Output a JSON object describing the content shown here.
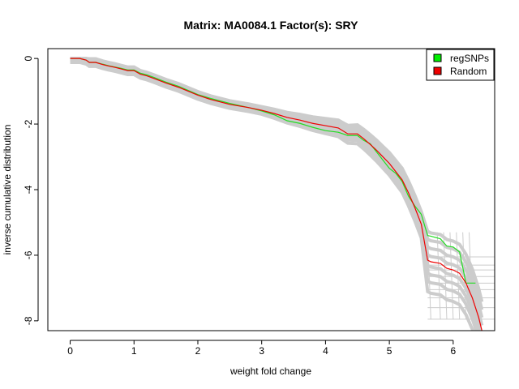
{
  "chart_data": {
    "type": "line",
    "title": "Matrix: MA0084.1 Factor(s): SRY",
    "xlabel": "weight fold change",
    "ylabel": "inverse cumulative distribution",
    "xlim": [
      -0.35,
      6.65
    ],
    "ylim": [
      -8.3,
      0.3
    ],
    "x_ticks": [
      0,
      1,
      2,
      3,
      4,
      5,
      6
    ],
    "y_ticks": [
      0,
      -2,
      -4,
      -6,
      -8
    ],
    "grid": false,
    "legend_position": "top-right",
    "legend": [
      {
        "label": "regSNPs",
        "color": "#00ee00"
      },
      {
        "label": "Random",
        "color": "#ee0000"
      }
    ],
    "background_color": "#cccccc",
    "series": [
      {
        "name": "regSNPs",
        "color": "#22dd22",
        "x": [
          0,
          0.15,
          0.25,
          0.3,
          0.4,
          0.5,
          0.6,
          0.7,
          0.8,
          0.9,
          1.0,
          1.1,
          1.2,
          1.3,
          1.5,
          1.7,
          2.0,
          2.2,
          2.5,
          2.8,
          3.0,
          3.2,
          3.4,
          3.6,
          3.8,
          4.0,
          4.2,
          4.35,
          4.5,
          4.6,
          4.7,
          4.8,
          4.9,
          5.0,
          5.1,
          5.2,
          5.3,
          5.4,
          5.5,
          5.6,
          5.65,
          5.8,
          5.9,
          6.0,
          6.1,
          6.2,
          6.35
        ],
        "y": [
          0,
          0,
          -0.05,
          -0.12,
          -0.12,
          -0.17,
          -0.22,
          -0.26,
          -0.3,
          -0.35,
          -0.35,
          -0.45,
          -0.5,
          -0.57,
          -0.72,
          -0.85,
          -1.1,
          -1.22,
          -1.37,
          -1.5,
          -1.6,
          -1.72,
          -1.9,
          -1.98,
          -2.1,
          -2.2,
          -2.25,
          -2.35,
          -2.35,
          -2.5,
          -2.6,
          -2.85,
          -3.1,
          -3.35,
          -3.5,
          -3.75,
          -4.2,
          -4.5,
          -4.75,
          -5.4,
          -5.42,
          -5.5,
          -5.72,
          -5.75,
          -5.9,
          -6.85,
          -6.85
        ]
      },
      {
        "name": "Random",
        "color": "#ee0000",
        "x": [
          0,
          0.15,
          0.25,
          0.3,
          0.4,
          0.5,
          0.6,
          0.7,
          0.8,
          0.9,
          1.0,
          1.1,
          1.2,
          1.3,
          1.5,
          1.7,
          2.0,
          2.2,
          2.5,
          2.8,
          3.0,
          3.2,
          3.4,
          3.6,
          3.8,
          4.0,
          4.2,
          4.35,
          4.5,
          4.6,
          4.7,
          4.8,
          4.9,
          5.0,
          5.1,
          5.2,
          5.3,
          5.4,
          5.5,
          5.6,
          5.65,
          5.8,
          5.9,
          6.0,
          6.1,
          6.2,
          6.3,
          6.4,
          6.45
        ],
        "y": [
          0,
          0,
          -0.05,
          -0.12,
          -0.12,
          -0.18,
          -0.23,
          -0.27,
          -0.32,
          -0.37,
          -0.37,
          -0.48,
          -0.53,
          -0.6,
          -0.75,
          -0.88,
          -1.12,
          -1.25,
          -1.4,
          -1.5,
          -1.58,
          -1.68,
          -1.8,
          -1.88,
          -1.98,
          -2.05,
          -2.12,
          -2.3,
          -2.3,
          -2.45,
          -2.62,
          -2.8,
          -3.0,
          -3.2,
          -3.45,
          -3.7,
          -4.1,
          -4.55,
          -5.05,
          -6.15,
          -6.2,
          -6.25,
          -6.4,
          -6.45,
          -6.55,
          -6.85,
          -7.3,
          -7.9,
          -8.3
        ]
      }
    ]
  }
}
